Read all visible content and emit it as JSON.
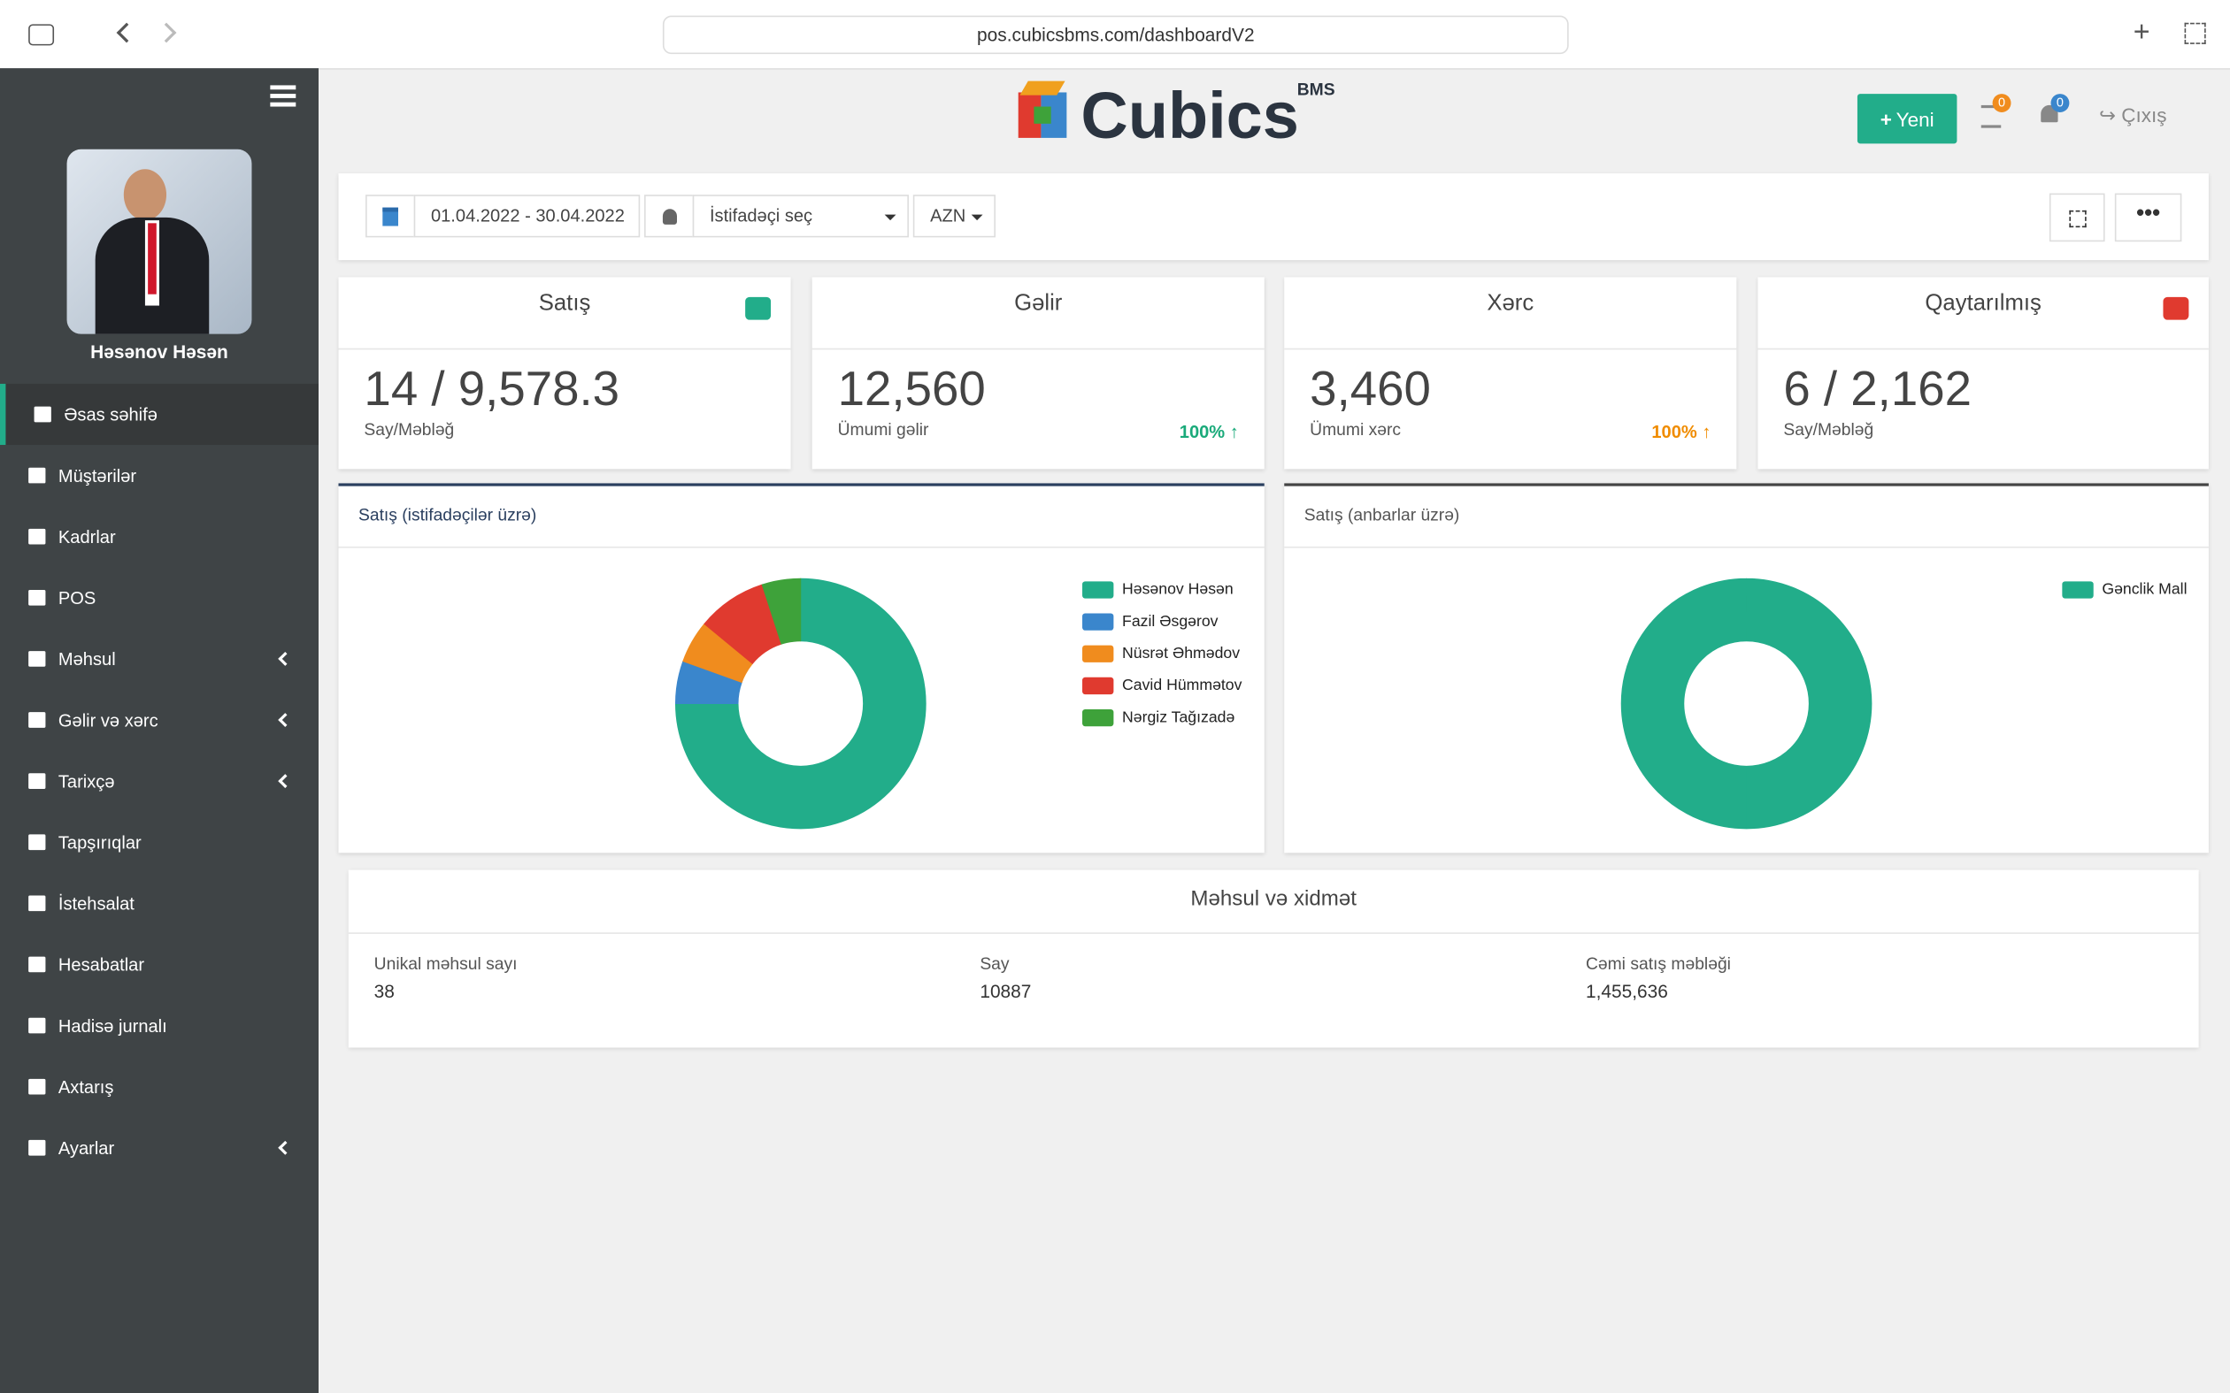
{
  "browser": {
    "url": "pos.cubicsbms.com/dashboardV2"
  },
  "header": {
    "logo": "Cubics",
    "logo_sup": "BMS",
    "new_button": "Yeni",
    "tasks_badge": "0",
    "notif_badge": "0",
    "logout": "Çıxış"
  },
  "sidebar": {
    "user": "Həsənov Həsən",
    "menu": [
      "Əsas səhifə",
      "Müştərilər",
      "Kadrlar",
      "POS",
      "Məhsul",
      "Gəlir və xərc",
      "Tarixçə",
      "Tapşırıqlar",
      "İstehsalat",
      "Hesabatlar",
      "Hadisə jurnalı",
      "Axtarış",
      "Ayarlar"
    ]
  },
  "filters": {
    "date_range": "01.04.2022 - 30.04.2022",
    "user_select": "İstifadəçi seç",
    "currency": "AZN"
  },
  "cards": [
    {
      "title": "Satış",
      "value": "14 / 9,578.3",
      "subtitle": "Say/Məbləğ"
    },
    {
      "title": "Gəlir",
      "value": "12,560",
      "subtitle": "Ümumi gəlir",
      "change": "100%"
    },
    {
      "title": "Xərc",
      "value": "3,460",
      "subtitle": "Ümumi xərc",
      "change": "100%"
    },
    {
      "title": "Qaytarılmış",
      "value": "6 / 2,162",
      "subtitle": "Say/Məbləğ"
    }
  ],
  "chart_data": [
    {
      "type": "donut",
      "title": "Satış (istifadəçilər üzrə)",
      "categories": [
        "Həsənov Həsən",
        "Fazil Əsgərov",
        "Nüsrət Əhmədov",
        "Cavid Hümmətov",
        "Nərgiz Tağızadə"
      ],
      "values": [
        75,
        5.5,
        5.5,
        9,
        5
      ],
      "colors": [
        "#22ad8a",
        "#3a86cc",
        "#f08c1e",
        "#e03a2f",
        "#3ea23a"
      ]
    },
    {
      "type": "donut",
      "title": "Satış (anbarlar üzrə)",
      "categories": [
        "Gənclik Mall"
      ],
      "values": [
        100
      ],
      "colors": [
        "#22ad8a"
      ]
    }
  ],
  "summary": {
    "title": "Məhsul və xidmət",
    "items": [
      {
        "label": "Unikal məhsul sayı",
        "value": "38"
      },
      {
        "label": "Say",
        "value": "10887"
      },
      {
        "label": "Cəmi satış məbləği",
        "value": "1,455,636"
      }
    ]
  }
}
